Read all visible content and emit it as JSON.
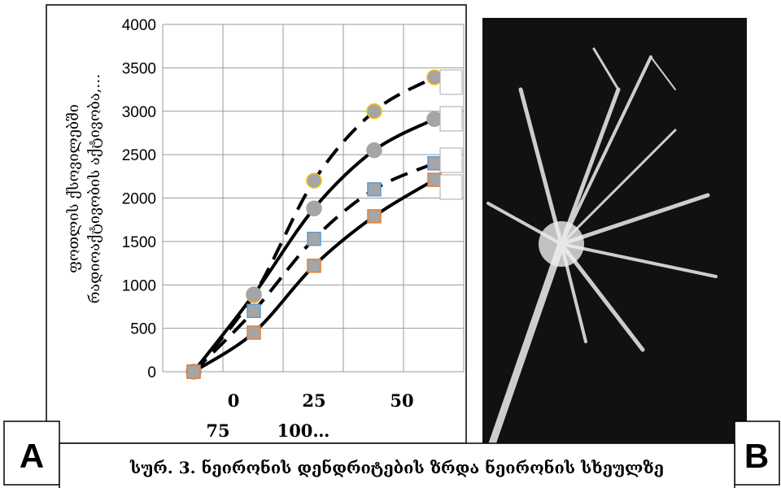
{
  "panel_a_label": "A",
  "panel_b_label": "B",
  "caption": "სურ. 3. ნეირონის დენდრიტების ზრდა ნეირონის სხეულზე",
  "chart_data": {
    "type": "line",
    "ylabel_lines": [
      "ფოთლის ქსოვილებში",
      "რადიოაქტივობის აქტივობა,…"
    ],
    "categories": [
      "0",
      "25",
      "50",
      "75",
      "100…"
    ],
    "ylim": [
      0,
      4000
    ],
    "yticks": [
      0,
      500,
      1000,
      1500,
      2000,
      2500,
      3000,
      3500,
      4000
    ],
    "grid": true,
    "series": [
      {
        "color": "#ffc000",
        "marker": "circle",
        "dashed": true,
        "values": [
          0,
          880,
          2200,
          3000,
          3390
        ]
      },
      {
        "color": "#a5a5a5",
        "marker": "circle",
        "dashed": false,
        "values": [
          0,
          890,
          1880,
          2550,
          2910
        ]
      },
      {
        "color": "#5b9bd5",
        "marker": "square",
        "dashed": true,
        "values": [
          0,
          700,
          1530,
          2100,
          2400
        ]
      },
      {
        "color": "#ed7d31",
        "marker": "square",
        "dashed": false,
        "values": [
          0,
          450,
          1220,
          1790,
          2210
        ]
      }
    ]
  }
}
